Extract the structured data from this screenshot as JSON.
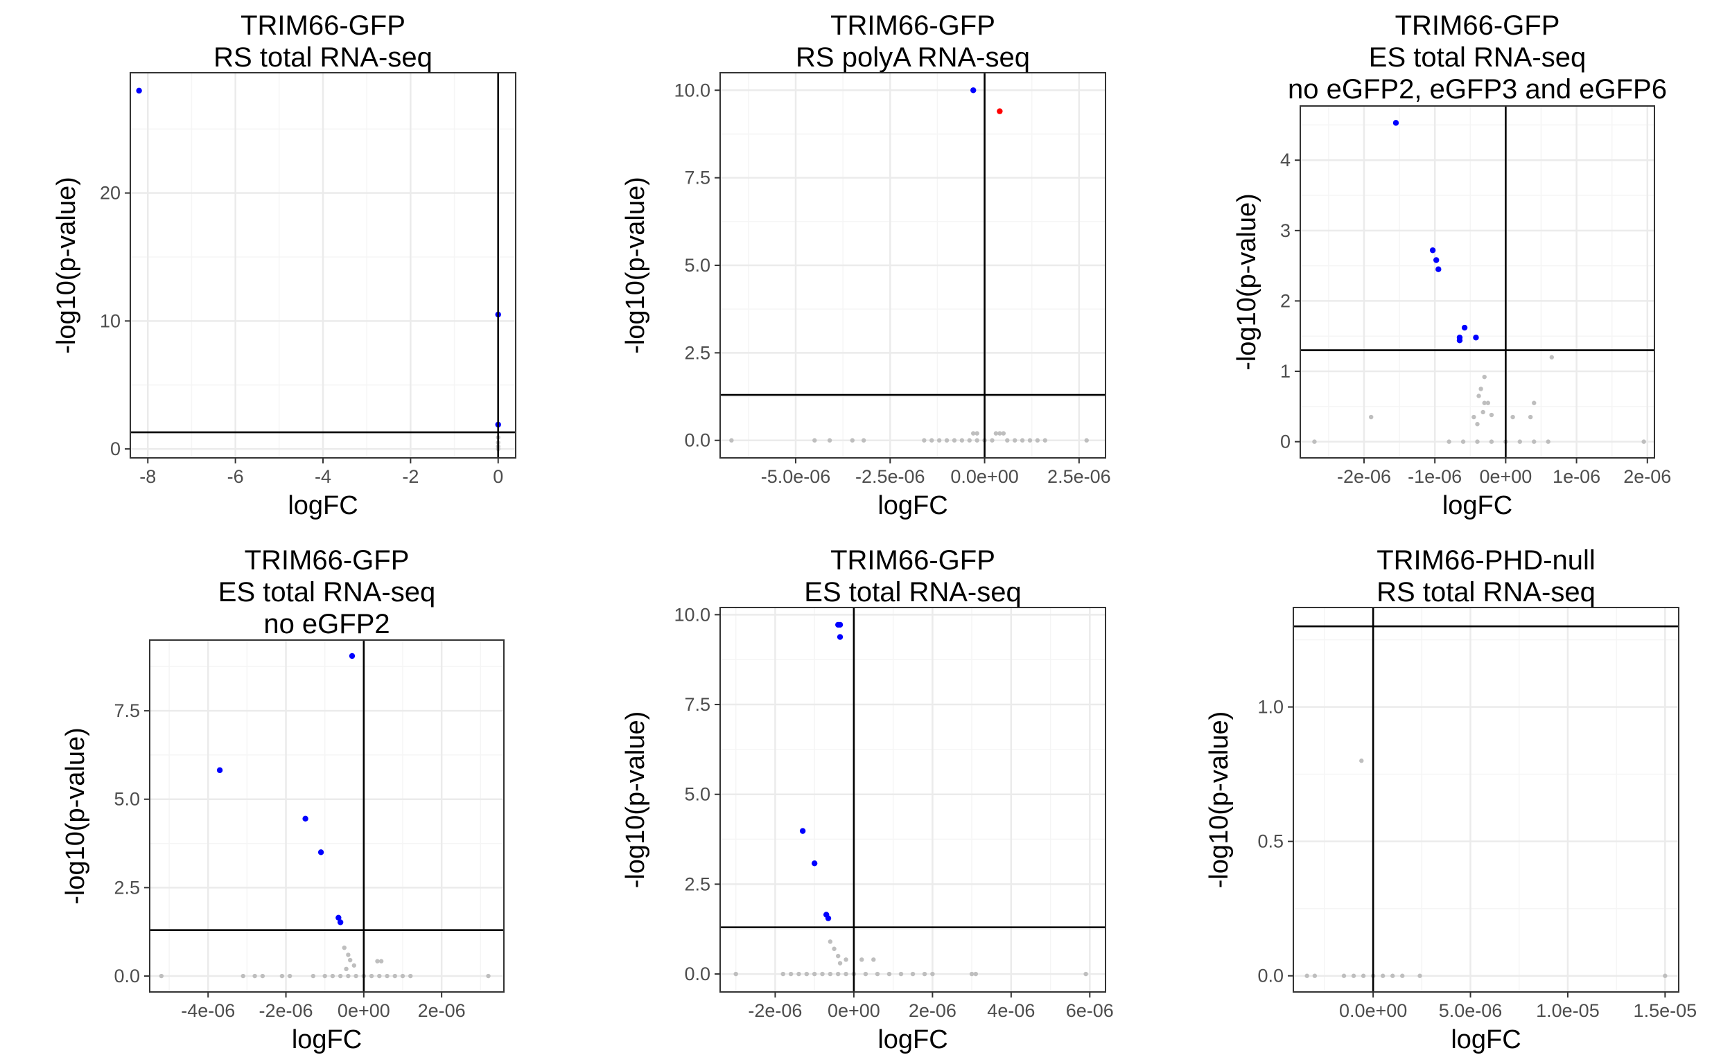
{
  "chart_data": [
    {
      "type": "scatter",
      "title": [
        "TRIM66-GFP",
        "RS total RNA-seq"
      ],
      "xlabel": "logFC",
      "ylabel": "-log10(p-value)",
      "xlim": [
        -8.4,
        0.4
      ],
      "ylim": [
        -0.7,
        29.4
      ],
      "xticks": [
        -8,
        -6,
        -4,
        -2,
        0
      ],
      "xtick_labels": [
        "-8",
        "-6",
        "-4",
        "-2",
        "0"
      ],
      "yticks": [
        0,
        10,
        20
      ],
      "ytick_labels": [
        "0",
        "10",
        "20"
      ],
      "vline": 0,
      "hline": 1.3,
      "grid": true,
      "points": [
        {
          "x": -8.2,
          "y": 28.0,
          "group": "down"
        },
        {
          "x": 0.0,
          "y": 10.5,
          "group": "down"
        },
        {
          "x": 0.0,
          "y": 1.9,
          "group": "down"
        },
        {
          "x": 0.0,
          "y": 0.9,
          "group": "ns"
        },
        {
          "x": 0.0,
          "y": 0.5,
          "group": "ns"
        },
        {
          "x": 0.0,
          "y": 0.2,
          "group": "ns"
        },
        {
          "x": 0.0,
          "y": 0.0,
          "group": "ns"
        }
      ]
    },
    {
      "type": "scatter",
      "title": [
        "TRIM66-GFP",
        "RS polyA RNA-seq"
      ],
      "xlabel": "logFC",
      "ylabel": "-log10(p-value)",
      "xlim": [
        -7e-06,
        3.2e-06
      ],
      "ylim": [
        -0.5,
        10.5
      ],
      "xticks": [
        -5e-06,
        -2.5e-06,
        0,
        2.5e-06
      ],
      "xtick_labels": [
        "-5.0e-06",
        "-2.5e-06",
        "0.0e+00",
        "2.5e-06"
      ],
      "yticks": [
        0,
        2.5,
        5,
        7.5,
        10
      ],
      "ytick_labels": [
        "0.0",
        "2.5",
        "5.0",
        "7.5",
        "10.0"
      ],
      "vline": 0,
      "hline": 1.3,
      "grid": true,
      "points": [
        {
          "x": -3e-07,
          "y": 10.0,
          "group": "down"
        },
        {
          "x": 4e-07,
          "y": 9.4,
          "group": "up"
        },
        {
          "x": -6.7e-06,
          "y": 0.0,
          "group": "ns"
        },
        {
          "x": -4.5e-06,
          "y": 0.0,
          "group": "ns"
        },
        {
          "x": -4.1e-06,
          "y": 0.0,
          "group": "ns"
        },
        {
          "x": -3.5e-06,
          "y": 0.0,
          "group": "ns"
        },
        {
          "x": -3.2e-06,
          "y": 0.0,
          "group": "ns"
        },
        {
          "x": -1.6e-06,
          "y": 0.0,
          "group": "ns"
        },
        {
          "x": -1.4e-06,
          "y": 0.0,
          "group": "ns"
        },
        {
          "x": -1.2e-06,
          "y": 0.0,
          "group": "ns"
        },
        {
          "x": -1e-06,
          "y": 0.0,
          "group": "ns"
        },
        {
          "x": -8e-07,
          "y": 0.0,
          "group": "ns"
        },
        {
          "x": -6e-07,
          "y": 0.0,
          "group": "ns"
        },
        {
          "x": -4e-07,
          "y": 0.0,
          "group": "ns"
        },
        {
          "x": -3e-07,
          "y": 0.2,
          "group": "ns"
        },
        {
          "x": -2e-07,
          "y": 0.2,
          "group": "ns"
        },
        {
          "x": -2e-07,
          "y": 0.0,
          "group": "ns"
        },
        {
          "x": 0.0,
          "y": 0.0,
          "group": "ns"
        },
        {
          "x": 2e-07,
          "y": 0.0,
          "group": "ns"
        },
        {
          "x": 3e-07,
          "y": 0.2,
          "group": "ns"
        },
        {
          "x": 4e-07,
          "y": 0.2,
          "group": "ns"
        },
        {
          "x": 5e-07,
          "y": 0.2,
          "group": "ns"
        },
        {
          "x": 6e-07,
          "y": 0.0,
          "group": "ns"
        },
        {
          "x": 8e-07,
          "y": 0.0,
          "group": "ns"
        },
        {
          "x": 1e-06,
          "y": 0.0,
          "group": "ns"
        },
        {
          "x": 1.2e-06,
          "y": 0.0,
          "group": "ns"
        },
        {
          "x": 1.4e-06,
          "y": 0.0,
          "group": "ns"
        },
        {
          "x": 1.6e-06,
          "y": 0.0,
          "group": "ns"
        },
        {
          "x": 2.7e-06,
          "y": 0.0,
          "group": "ns"
        }
      ]
    },
    {
      "type": "scatter",
      "title": [
        "TRIM66-GFP",
        "ES total RNA-seq",
        "no eGFP2, eGFP3 and eGFP6"
      ],
      "xlabel": "logFC",
      "ylabel": "-log10(p-value)",
      "xlim": [
        -2.9e-06,
        2.1e-06
      ],
      "ylim": [
        -0.23,
        4.77
      ],
      "xticks": [
        -2e-06,
        -1e-06,
        0,
        1e-06,
        2e-06
      ],
      "xtick_labels": [
        "-2e-06",
        "-1e-06",
        "0e+00",
        "1e-06",
        "2e-06"
      ],
      "yticks": [
        0,
        1,
        2,
        3,
        4
      ],
      "ytick_labels": [
        "0",
        "1",
        "2",
        "3",
        "4"
      ],
      "vline": 0,
      "hline": 1.3,
      "grid": true,
      "points": [
        {
          "x": -1.55e-06,
          "y": 4.53,
          "group": "down"
        },
        {
          "x": -1.03e-06,
          "y": 2.72,
          "group": "down"
        },
        {
          "x": -9.8e-07,
          "y": 2.58,
          "group": "down"
        },
        {
          "x": -9.5e-07,
          "y": 2.45,
          "group": "down"
        },
        {
          "x": -5.8e-07,
          "y": 1.62,
          "group": "down"
        },
        {
          "x": -6.5e-07,
          "y": 1.48,
          "group": "down"
        },
        {
          "x": -6.5e-07,
          "y": 1.44,
          "group": "down"
        },
        {
          "x": -4.2e-07,
          "y": 1.48,
          "group": "down"
        },
        {
          "x": -2.7e-06,
          "y": 0.0,
          "group": "ns"
        },
        {
          "x": -1.9e-06,
          "y": 0.35,
          "group": "ns"
        },
        {
          "x": -8e-07,
          "y": 0.0,
          "group": "ns"
        },
        {
          "x": -3e-07,
          "y": 0.92,
          "group": "ns"
        },
        {
          "x": -3.5e-07,
          "y": 0.75,
          "group": "ns"
        },
        {
          "x": -3.8e-07,
          "y": 0.65,
          "group": "ns"
        },
        {
          "x": -3e-07,
          "y": 0.55,
          "group": "ns"
        },
        {
          "x": -2.5e-07,
          "y": 0.55,
          "group": "ns"
        },
        {
          "x": -3.2e-07,
          "y": 0.42,
          "group": "ns"
        },
        {
          "x": -2e-07,
          "y": 0.38,
          "group": "ns"
        },
        {
          "x": -4e-07,
          "y": 0.25,
          "group": "ns"
        },
        {
          "x": -4.5e-07,
          "y": 0.35,
          "group": "ns"
        },
        {
          "x": 1e-07,
          "y": 0.35,
          "group": "ns"
        },
        {
          "x": 4e-07,
          "y": 0.55,
          "group": "ns"
        },
        {
          "x": 3.5e-07,
          "y": 0.35,
          "group": "ns"
        },
        {
          "x": 6.5e-07,
          "y": 1.2,
          "group": "ns"
        },
        {
          "x": -6e-07,
          "y": 0.0,
          "group": "ns"
        },
        {
          "x": -4e-07,
          "y": 0.0,
          "group": "ns"
        },
        {
          "x": -2e-07,
          "y": 0.0,
          "group": "ns"
        },
        {
          "x": 0.0,
          "y": 0.0,
          "group": "ns"
        },
        {
          "x": 2e-07,
          "y": 0.0,
          "group": "ns"
        },
        {
          "x": 4e-07,
          "y": 0.0,
          "group": "ns"
        },
        {
          "x": 6e-07,
          "y": 0.0,
          "group": "ns"
        },
        {
          "x": 1.95e-06,
          "y": 0.0,
          "group": "ns"
        }
      ]
    },
    {
      "type": "scatter",
      "title": [
        "TRIM66-GFP",
        "ES total RNA-seq",
        "no eGFP2"
      ],
      "xlabel": "logFC",
      "ylabel": "-log10(p-value)",
      "xlim": [
        -5.5e-06,
        3.6e-06
      ],
      "ylim": [
        -0.45,
        9.5
      ],
      "xticks": [
        -4e-06,
        -2e-06,
        0,
        2e-06
      ],
      "xtick_labels": [
        "-4e-06",
        "-2e-06",
        "0e+00",
        "2e-06"
      ],
      "yticks": [
        0,
        2.5,
        5,
        7.5
      ],
      "ytick_labels": [
        "0.0",
        "2.5",
        "5.0",
        "7.5"
      ],
      "vline": 0,
      "hline": 1.3,
      "grid": true,
      "points": [
        {
          "x": -3e-07,
          "y": 9.05,
          "group": "down"
        },
        {
          "x": -3.7e-06,
          "y": 5.82,
          "group": "down"
        },
        {
          "x": -1.5e-06,
          "y": 4.45,
          "group": "down"
        },
        {
          "x": -1.1e-06,
          "y": 3.5,
          "group": "down"
        },
        {
          "x": -6.5e-07,
          "y": 1.65,
          "group": "down"
        },
        {
          "x": -6e-07,
          "y": 1.52,
          "group": "down"
        },
        {
          "x": -5.2e-06,
          "y": 0.0,
          "group": "ns"
        },
        {
          "x": -3.1e-06,
          "y": 0.0,
          "group": "ns"
        },
        {
          "x": -2.8e-06,
          "y": 0.0,
          "group": "ns"
        },
        {
          "x": -2.6e-06,
          "y": 0.0,
          "group": "ns"
        },
        {
          "x": -2.1e-06,
          "y": 0.0,
          "group": "ns"
        },
        {
          "x": -1.9e-06,
          "y": 0.0,
          "group": "ns"
        },
        {
          "x": -1.3e-06,
          "y": 0.0,
          "group": "ns"
        },
        {
          "x": -5e-07,
          "y": 0.8,
          "group": "ns"
        },
        {
          "x": -4e-07,
          "y": 0.6,
          "group": "ns"
        },
        {
          "x": -3.5e-07,
          "y": 0.45,
          "group": "ns"
        },
        {
          "x": -2.5e-07,
          "y": 0.3,
          "group": "ns"
        },
        {
          "x": -4.5e-07,
          "y": 0.2,
          "group": "ns"
        },
        {
          "x": 3.5e-07,
          "y": 0.42,
          "group": "ns"
        },
        {
          "x": 4.5e-07,
          "y": 0.42,
          "group": "ns"
        },
        {
          "x": -1e-06,
          "y": 0.0,
          "group": "ns"
        },
        {
          "x": -8e-07,
          "y": 0.0,
          "group": "ns"
        },
        {
          "x": -6e-07,
          "y": 0.0,
          "group": "ns"
        },
        {
          "x": -4e-07,
          "y": 0.0,
          "group": "ns"
        },
        {
          "x": -2e-07,
          "y": 0.0,
          "group": "ns"
        },
        {
          "x": 0.0,
          "y": 0.0,
          "group": "ns"
        },
        {
          "x": 2e-07,
          "y": 0.0,
          "group": "ns"
        },
        {
          "x": 4e-07,
          "y": 0.0,
          "group": "ns"
        },
        {
          "x": 6e-07,
          "y": 0.0,
          "group": "ns"
        },
        {
          "x": 8e-07,
          "y": 0.0,
          "group": "ns"
        },
        {
          "x": 1e-06,
          "y": 0.0,
          "group": "ns"
        },
        {
          "x": 1.2e-06,
          "y": 0.0,
          "group": "ns"
        },
        {
          "x": 3.2e-06,
          "y": 0.0,
          "group": "ns"
        }
      ]
    },
    {
      "type": "scatter",
      "title": [
        "TRIM66-GFP",
        "ES total RNA-seq"
      ],
      "xlabel": "logFC",
      "ylabel": "-log10(p-value)",
      "xlim": [
        -3.4e-06,
        6.4e-06
      ],
      "ylim": [
        -0.5,
        10.2
      ],
      "xticks": [
        -2e-06,
        0,
        2e-06,
        4e-06,
        6e-06
      ],
      "xtick_labels": [
        "-2e-06",
        "0e+00",
        "2e-06",
        "4e-06",
        "6e-06"
      ],
      "yticks": [
        0,
        2.5,
        5,
        7.5,
        10
      ],
      "ytick_labels": [
        "0.0",
        "2.5",
        "5.0",
        "7.5",
        "10.0"
      ],
      "vline": 0,
      "hline": 1.3,
      "grid": true,
      "points": [
        {
          "x": -4e-07,
          "y": 9.72,
          "group": "down"
        },
        {
          "x": -3.5e-07,
          "y": 9.72,
          "group": "down"
        },
        {
          "x": -3.5e-07,
          "y": 9.38,
          "group": "down"
        },
        {
          "x": -1.3e-06,
          "y": 3.98,
          "group": "down"
        },
        {
          "x": -1e-06,
          "y": 3.08,
          "group": "down"
        },
        {
          "x": -7e-07,
          "y": 1.65,
          "group": "down"
        },
        {
          "x": -6.5e-07,
          "y": 1.55,
          "group": "down"
        },
        {
          "x": -3e-06,
          "y": 0.0,
          "group": "ns"
        },
        {
          "x": -1.8e-06,
          "y": 0.0,
          "group": "ns"
        },
        {
          "x": -1.6e-06,
          "y": 0.0,
          "group": "ns"
        },
        {
          "x": -1.4e-06,
          "y": 0.0,
          "group": "ns"
        },
        {
          "x": -1.2e-06,
          "y": 0.0,
          "group": "ns"
        },
        {
          "x": -6e-07,
          "y": 0.9,
          "group": "ns"
        },
        {
          "x": -5e-07,
          "y": 0.7,
          "group": "ns"
        },
        {
          "x": -4e-07,
          "y": 0.5,
          "group": "ns"
        },
        {
          "x": -3.5e-07,
          "y": 0.3,
          "group": "ns"
        },
        {
          "x": -2e-07,
          "y": 0.4,
          "group": "ns"
        },
        {
          "x": 2e-07,
          "y": 0.4,
          "group": "ns"
        },
        {
          "x": 5e-07,
          "y": 0.4,
          "group": "ns"
        },
        {
          "x": -1e-06,
          "y": 0.0,
          "group": "ns"
        },
        {
          "x": -8e-07,
          "y": 0.0,
          "group": "ns"
        },
        {
          "x": -6e-07,
          "y": 0.0,
          "group": "ns"
        },
        {
          "x": -4e-07,
          "y": 0.0,
          "group": "ns"
        },
        {
          "x": -2e-07,
          "y": 0.0,
          "group": "ns"
        },
        {
          "x": 0.0,
          "y": 0.0,
          "group": "ns"
        },
        {
          "x": 3e-07,
          "y": 0.0,
          "group": "ns"
        },
        {
          "x": 6e-07,
          "y": 0.0,
          "group": "ns"
        },
        {
          "x": 9e-07,
          "y": 0.0,
          "group": "ns"
        },
        {
          "x": 1.2e-06,
          "y": 0.0,
          "group": "ns"
        },
        {
          "x": 1.5e-06,
          "y": 0.0,
          "group": "ns"
        },
        {
          "x": 1.8e-06,
          "y": 0.0,
          "group": "ns"
        },
        {
          "x": 2e-06,
          "y": 0.0,
          "group": "ns"
        },
        {
          "x": 3e-06,
          "y": 0.0,
          "group": "ns"
        },
        {
          "x": 3.1e-06,
          "y": 0.0,
          "group": "ns"
        },
        {
          "x": 5.9e-06,
          "y": 0.0,
          "group": "ns"
        }
      ]
    },
    {
      "type": "scatter",
      "title": [
        "TRIM66-PHD-null",
        "RS total RNA-seq"
      ],
      "xlabel": "logFC",
      "ylabel": "-log10(p-value)",
      "xlim": [
        -4.1e-06,
        1.57e-05
      ],
      "ylim": [
        -0.06,
        1.37
      ],
      "xticks": [
        0,
        5e-06,
        1e-05,
        1.5e-05
      ],
      "xtick_labels": [
        "0.0e+00",
        "5.0e-06",
        "1.0e-05",
        "1.5e-05"
      ],
      "yticks": [
        0,
        0.5,
        1.0
      ],
      "ytick_labels": [
        "0.0",
        "0.5",
        "1.0"
      ],
      "vline": 0,
      "hline": 1.3,
      "grid": true,
      "points": [
        {
          "x": -6e-07,
          "y": 0.8,
          "group": "ns"
        },
        {
          "x": -3.4e-06,
          "y": 0.0,
          "group": "ns"
        },
        {
          "x": -3e-06,
          "y": 0.0,
          "group": "ns"
        },
        {
          "x": -1.5e-06,
          "y": 0.0,
          "group": "ns"
        },
        {
          "x": -1e-06,
          "y": 0.0,
          "group": "ns"
        },
        {
          "x": -5e-07,
          "y": 0.0,
          "group": "ns"
        },
        {
          "x": 0.0,
          "y": 0.0,
          "group": "ns"
        },
        {
          "x": 5e-07,
          "y": 0.0,
          "group": "ns"
        },
        {
          "x": 1e-06,
          "y": 0.0,
          "group": "ns"
        },
        {
          "x": 1.5e-06,
          "y": 0.0,
          "group": "ns"
        },
        {
          "x": 2.4e-06,
          "y": 0.0,
          "group": "ns"
        },
        {
          "x": 1.5e-05,
          "y": 0.0,
          "group": "ns"
        }
      ]
    }
  ],
  "colors": {
    "down": "#0000ff",
    "up": "#ff0000",
    "ns": "#bebebe",
    "grid_major": "#ebebeb",
    "grid_minor": "#f5f5f5",
    "frame": "#333333",
    "reference_line": "#000000"
  }
}
